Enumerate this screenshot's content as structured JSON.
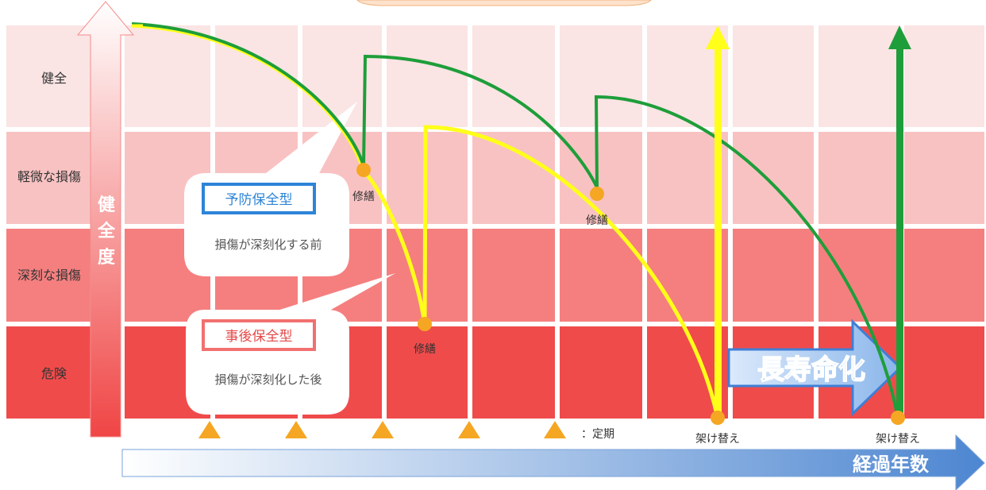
{
  "rows": [
    {
      "label": "健全",
      "color": "#fbe4e4"
    },
    {
      "label": "軽微な損傷",
      "color": "#f9c2c2"
    },
    {
      "label": "深刻な損傷",
      "color": "#f57f7f"
    },
    {
      "label": "危険",
      "color": "#f04b4b"
    }
  ],
  "y_axis_label": [
    "健",
    "全",
    "度"
  ],
  "x_axis_label": "経過年数",
  "bubbles": {
    "preventive": {
      "title": "予防保全型",
      "desc": "損傷が深刻化する前"
    },
    "reactive": {
      "title": "事後保全型",
      "desc": "損傷が深刻化した後"
    }
  },
  "events": {
    "repair_green_1": "修繕",
    "repair_green_2": "修繕",
    "repair_yellow": "修繕",
    "replace_yellow": "架け替え",
    "replace_green": "架け替え"
  },
  "legend": {
    "periodic": "：定期",
    "inspections": 5
  },
  "callout": "長寿命化",
  "colors": {
    "green": "#1e9e3a",
    "yellow": "#ffff1a",
    "marker": "#f5a623",
    "blue": "#2d84d8",
    "red_border": "#f27070",
    "x_arrow_start": "#ffffff",
    "x_arrow_end": "#4d86d1"
  }
}
